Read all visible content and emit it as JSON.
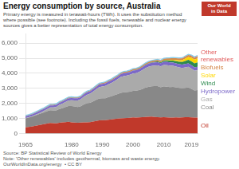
{
  "chart_data": {
    "type": "area",
    "title": "Energy consumption by source, Australia",
    "subtitle": "Primary energy is measured in terawatt-hours (TWh). It uses the substitution method\nwhere possible (see footnote). Including the fossil fuels, renewable and nuclear energy\nsources gives a better representation of total energy consumption.",
    "annotations": [
      "Source: BP Statistical Review of World Energy",
      "Note: 'Other renewables' includes geothermal, biomass and waste energy.",
      "OurWorldInData.org/energy  • CC BY"
    ],
    "badge": [
      "Our World",
      "in Data"
    ],
    "stacked": true,
    "grid": true,
    "x": [
      1965,
      1966,
      1967,
      1968,
      1969,
      1970,
      1971,
      1972,
      1973,
      1974,
      1975,
      1976,
      1977,
      1978,
      1979,
      1980,
      1981,
      1982,
      1983,
      1984,
      1985,
      1986,
      1987,
      1988,
      1989,
      1990,
      1991,
      1992,
      1993,
      1994,
      1995,
      1996,
      1997,
      1998,
      1999,
      2000,
      2001,
      2002,
      2003,
      2004,
      2005,
      2006,
      2007,
      2008,
      2009,
      2010,
      2011,
      2012,
      2013,
      2014,
      2015,
      2016,
      2017,
      2018,
      2019,
      2020,
      2021
    ],
    "xlim": [
      1965,
      2021
    ],
    "xticks": [
      1965,
      1980,
      1990,
      2000,
      2010,
      2019
    ],
    "ylim": [
      0,
      6600
    ],
    "yticks": [
      0,
      {
        "value": 1000,
        "label": "1,000"
      },
      {
        "value": 2000,
        "label": "2,000"
      },
      {
        "value": 3000,
        "label": "3,000"
      },
      {
        "value": 4000,
        "label": "4,000"
      },
      {
        "value": 5000,
        "label": "5,000"
      },
      {
        "value": 6000,
        "label": "6,000"
      }
    ],
    "series": [
      {
        "name": "Oil",
        "color": "#C0392B",
        "values": [
          400,
          430,
          460,
          500,
          540,
          580,
          615,
          655,
          700,
          680,
          670,
          715,
          730,
          755,
          770,
          740,
          720,
          705,
          720,
          730,
          740,
          755,
          790,
          830,
          875,
          885,
          880,
          915,
          935,
          965,
          985,
          1000,
          1015,
          1025,
          1045,
          1070,
          1060,
          1065,
          1085,
          1100,
          1110,
          1115,
          1100,
          1085,
          1070,
          1085,
          1070,
          1055,
          1060,
          1065,
          1060,
          1065,
          1075,
          1085,
          1065,
          1050,
          1060
        ]
      },
      {
        "name": "Coal",
        "color": "#888888",
        "values": [
          600,
          625,
          650,
          685,
          715,
          750,
          785,
          820,
          850,
          850,
          865,
          915,
          950,
          995,
          1050,
          1085,
          1070,
          1055,
          1085,
          1200,
          1265,
          1285,
          1335,
          1400,
          1450,
          1450,
          1465,
          1500,
          1535,
          1580,
          1635,
          1700,
          1715,
          1725,
          1735,
          1765,
          1785,
          1815,
          1865,
          1935,
          1985,
          2015,
          2050,
          2065,
          1999,
          2050,
          2035,
          2020,
          2035,
          2000,
          1965,
          1935,
          1950,
          1965,
          1900,
          1800,
          1815
        ]
      },
      {
        "name": "Gas",
        "color": "#AAAAAA",
        "values": [
          20,
          22,
          25,
          35,
          55,
          75,
          100,
          135,
          175,
          200,
          225,
          265,
          300,
          335,
          370,
          385,
          400,
          435,
          465,
          515,
          565,
          600,
          650,
          700,
          750,
          785,
          815,
          850,
          885,
          935,
          985,
          1050,
          1085,
          1100,
          1120,
          1150,
          1165,
          1200,
          1250,
          1300,
          1335,
          1350,
          1365,
          1380,
          1385,
          1415,
          1435,
          1435,
          1400,
          1380,
          1365,
          1350,
          1370,
          1385,
          1350,
          1315,
          1335
        ]
      },
      {
        "name": "Hydropower",
        "color": "#7B68C8",
        "values": [
          115,
          118,
          122,
          126,
          130,
          133,
          135,
          138,
          140,
          137,
          140,
          143,
          147,
          150,
          153,
          147,
          143,
          147,
          150,
          157,
          160,
          160,
          167,
          170,
          173,
          173,
          177,
          180,
          180,
          183,
          183,
          187,
          190,
          190,
          193,
          197,
          197,
          200,
          203,
          207,
          207,
          210,
          210,
          207,
          210,
          213,
          217,
          217,
          220,
          217,
          217,
          220,
          223,
          223,
          220,
          223,
          227
        ]
      },
      {
        "name": "Wind",
        "color": "#2D8A4E",
        "values": [
          0,
          0,
          0,
          0,
          0,
          0,
          0,
          0,
          0,
          0,
          0,
          0,
          0,
          0,
          0,
          0,
          0,
          0,
          0,
          0,
          0,
          0,
          0,
          0,
          0,
          0,
          0,
          0,
          0,
          2,
          3,
          4,
          6,
          7,
          8,
          10,
          11,
          13,
          17,
          20,
          23,
          30,
          37,
          47,
          60,
          73,
          93,
          110,
          123,
          140,
          153,
          173,
          200,
          233,
          260,
          267,
          283
        ]
      },
      {
        "name": "Solar",
        "color": "#FFD700",
        "values": [
          0,
          0,
          0,
          0,
          0,
          0,
          0,
          0,
          0,
          0,
          0,
          0,
          0,
          0,
          0,
          0,
          0,
          0,
          0,
          0,
          0,
          0,
          0,
          0,
          0,
          0,
          0,
          0,
          0,
          0,
          0,
          0,
          0,
          0,
          0,
          0,
          0,
          0,
          0,
          0,
          0,
          3,
          3,
          7,
          10,
          17,
          27,
          43,
          60,
          77,
          97,
          123,
          157,
          193,
          233,
          250,
          273
        ]
      },
      {
        "name": "Biofuels",
        "color": "#D4884A",
        "values": [
          50,
          50,
          53,
          53,
          57,
          57,
          57,
          60,
          60,
          60,
          60,
          63,
          63,
          67,
          67,
          67,
          67,
          70,
          70,
          73,
          73,
          73,
          77,
          77,
          80,
          80,
          83,
          83,
          87,
          87,
          90,
          90,
          93,
          93,
          97,
          97,
          100,
          100,
          103,
          103,
          107,
          107,
          110,
          110,
          110,
          113,
          113,
          117,
          117,
          117,
          120,
          120,
          123,
          123,
          123,
          123,
          127
        ]
      },
      {
        "name": "Other\nrenewables",
        "color": "#E05A5A",
        "values": [
          7,
          7,
          7,
          7,
          7,
          7,
          7,
          7,
          7,
          7,
          7,
          7,
          7,
          7,
          7,
          7,
          7,
          7,
          7,
          7,
          7,
          7,
          7,
          10,
          10,
          10,
          10,
          10,
          10,
          10,
          10,
          10,
          10,
          10,
          10,
          13,
          13,
          13,
          13,
          13,
          17,
          17,
          17,
          20,
          20,
          23,
          27,
          30,
          33,
          37,
          40,
          43,
          47,
          50,
          53,
          57,
          60
        ]
      },
      {
        "type": "line",
        "color": "#87CEEB",
        "values": [
          1192,
          1252,
          1317,
          1406,
          1504,
          1602,
          1699,
          1815,
          1932,
          1934,
          1967,
          2108,
          2197,
          2309,
          2417,
          2431,
          2407,
          2419,
          2497,
          2682,
          2810,
          2880,
          3026,
          3187,
          3338,
          3383,
          3430,
          3538,
          3632,
          3762,
          3891,
          4041,
          4114,
          4150,
          4208,
          4302,
          4331,
          4406,
          4536,
          4678,
          4784,
          4847,
          4892,
          4921,
          4864,
          4989,
          5017,
          5027,
          5048,
          5033,
          5017,
          5029,
          5145,
          5257,
          5204,
          5085,
          5180
        ]
      }
    ]
  }
}
